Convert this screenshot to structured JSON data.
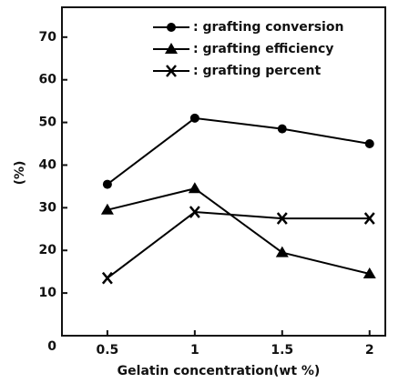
{
  "chart_data": {
    "type": "line",
    "xlabel": "Gelatin concentration(wt %)",
    "ylabel": "(%)",
    "x": [
      0.5,
      1,
      1.5,
      2
    ],
    "series": [
      {
        "name": ": grafting conversion",
        "color": "#000000",
        "marker": "circle",
        "values": [
          35.5,
          51,
          48.5,
          45
        ]
      },
      {
        "name": ": grafting efficiency",
        "color": "#000000",
        "marker": "triangle",
        "values": [
          29.5,
          34.5,
          19.5,
          14.5
        ]
      },
      {
        "name": ": grafting percent",
        "color": "#000000",
        "marker": "x",
        "values": [
          13.5,
          29,
          27.5,
          27.5
        ]
      }
    ],
    "xlim": [
      0.24,
      2.09
    ],
    "xticks": [
      0.5,
      1,
      1.5,
      2
    ],
    "ylim": [
      0,
      77
    ],
    "yticks": [
      0,
      10,
      20,
      30,
      40,
      50,
      60,
      70
    ],
    "grid": false,
    "legend": "upper-right"
  }
}
